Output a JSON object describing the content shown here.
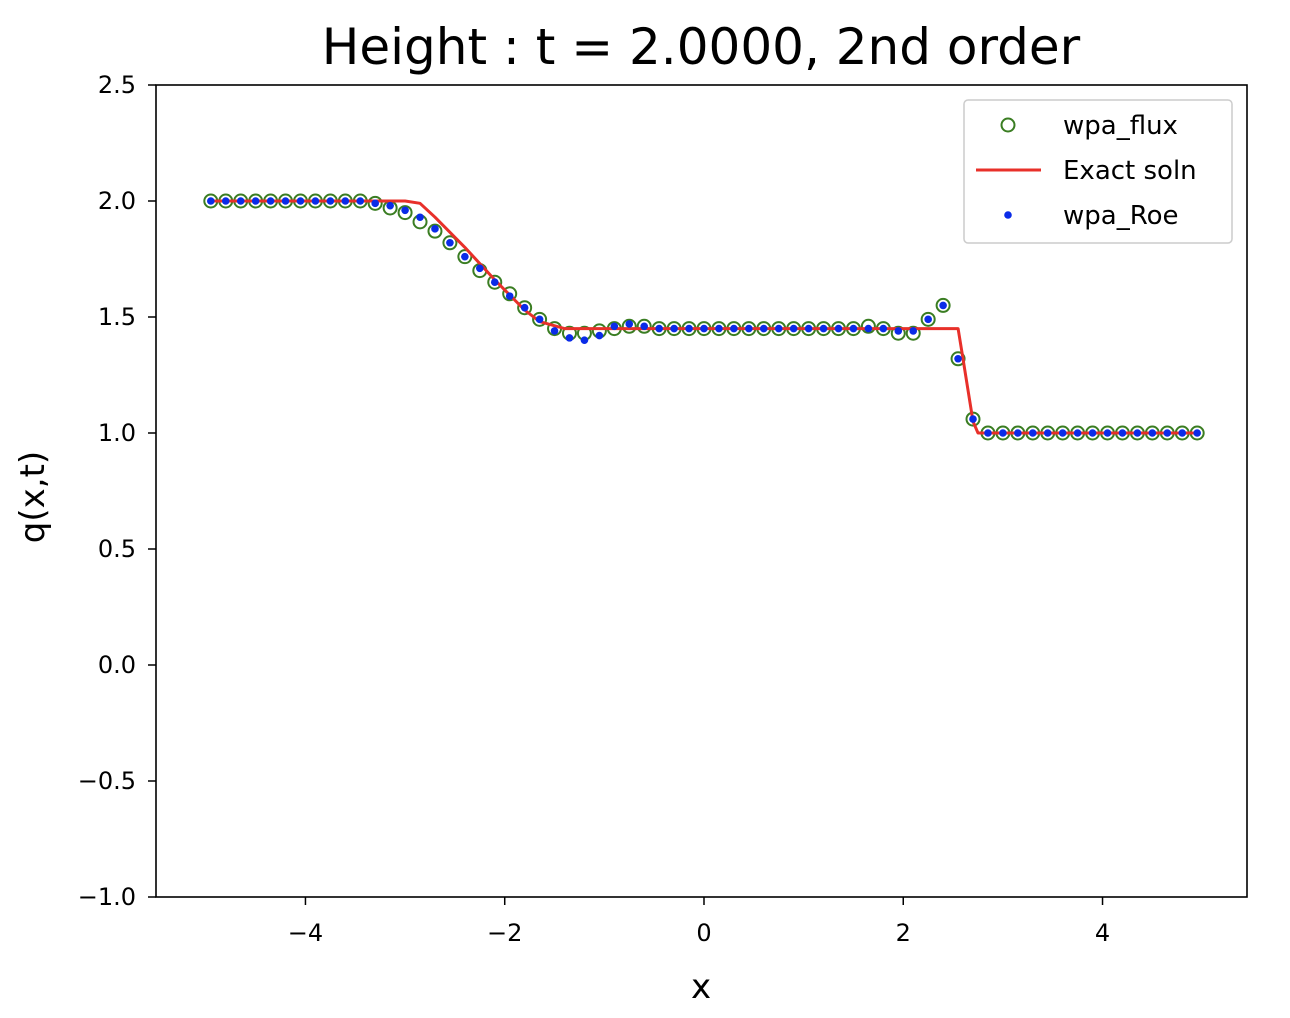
{
  "chart_data": {
    "type": "scatter",
    "title": "Height : t = 2.0000, 2nd order",
    "xlabel": "x",
    "ylabel": "q(x,t)",
    "xlim": [
      -5.5,
      5.45
    ],
    "ylim": [
      -1.0,
      2.5
    ],
    "xticks": [
      -4,
      -2,
      0,
      2,
      4
    ],
    "xtick_labels": [
      "−4",
      "−2",
      "0",
      "2",
      "4"
    ],
    "yticks": [
      -1.0,
      -0.5,
      0.0,
      0.5,
      1.0,
      1.5,
      2.0,
      2.5
    ],
    "ytick_labels": [
      "−1.0",
      "−0.5",
      "0.0",
      "0.5",
      "1.0",
      "1.5",
      "2.0",
      "2.5"
    ],
    "grid": false,
    "legend_position": "top-right",
    "series": [
      {
        "name": "wpa_flux",
        "marker": "open-circle",
        "color": "#3a7d22",
        "x": [
          -4.95,
          -4.8,
          -4.65,
          -4.5,
          -4.35,
          -4.2,
          -4.05,
          -3.9,
          -3.75,
          -3.6,
          -3.45,
          -3.3,
          -3.15,
          -3.0,
          -2.85,
          -2.7,
          -2.55,
          -2.4,
          -2.25,
          -2.1,
          -1.95,
          -1.8,
          -1.65,
          -1.5,
          -1.35,
          -1.2,
          -1.05,
          -0.9,
          -0.75,
          -0.6,
          -0.45,
          -0.3,
          -0.15,
          0.0,
          0.15,
          0.3,
          0.45,
          0.6,
          0.75,
          0.9,
          1.05,
          1.2,
          1.35,
          1.5,
          1.65,
          1.8,
          1.95,
          2.1,
          2.25,
          2.4,
          2.55,
          2.7,
          2.85,
          3.0,
          3.15,
          3.3,
          3.45,
          3.6,
          3.75,
          3.9,
          4.05,
          4.2,
          4.35,
          4.5,
          4.65,
          4.8,
          4.95
        ],
        "y": [
          2.0,
          2.0,
          2.0,
          2.0,
          2.0,
          2.0,
          2.0,
          2.0,
          2.0,
          2.0,
          2.0,
          1.99,
          1.97,
          1.95,
          1.91,
          1.87,
          1.82,
          1.76,
          1.7,
          1.65,
          1.6,
          1.54,
          1.49,
          1.45,
          1.43,
          1.43,
          1.44,
          1.45,
          1.46,
          1.46,
          1.45,
          1.45,
          1.45,
          1.45,
          1.45,
          1.45,
          1.45,
          1.45,
          1.45,
          1.45,
          1.45,
          1.45,
          1.45,
          1.45,
          1.46,
          1.45,
          1.43,
          1.43,
          1.49,
          1.55,
          1.32,
          1.06,
          1.0,
          1.0,
          1.0,
          1.0,
          1.0,
          1.0,
          1.0,
          1.0,
          1.0,
          1.0,
          1.0,
          1.0,
          1.0,
          1.0,
          1.0
        ]
      },
      {
        "name": "Exact soln",
        "marker": "line",
        "color": "#e8302a",
        "x": [
          -4.95,
          -3.0,
          -2.85,
          -2.7,
          -2.4,
          -2.1,
          -1.8,
          -1.65,
          -1.4,
          -0.9,
          2.55,
          2.6,
          2.7,
          2.75,
          4.95
        ],
        "y": [
          2.0,
          2.0,
          1.99,
          1.93,
          1.8,
          1.66,
          1.53,
          1.48,
          1.45,
          1.45,
          1.45,
          1.32,
          1.05,
          1.0,
          1.0
        ]
      },
      {
        "name": "wpa_Roe",
        "marker": "dot",
        "color": "#0a2be8",
        "x": [
          -4.95,
          -4.8,
          -4.65,
          -4.5,
          -4.35,
          -4.2,
          -4.05,
          -3.9,
          -3.75,
          -3.6,
          -3.45,
          -3.3,
          -3.15,
          -3.0,
          -2.85,
          -2.7,
          -2.55,
          -2.4,
          -2.25,
          -2.1,
          -1.95,
          -1.8,
          -1.65,
          -1.5,
          -1.35,
          -1.2,
          -1.05,
          -0.9,
          -0.75,
          -0.6,
          -0.45,
          -0.3,
          -0.15,
          0.0,
          0.15,
          0.3,
          0.45,
          0.6,
          0.75,
          0.9,
          1.05,
          1.2,
          1.35,
          1.5,
          1.65,
          1.8,
          1.95,
          2.1,
          2.25,
          2.4,
          2.55,
          2.7,
          2.85,
          3.0,
          3.15,
          3.3,
          3.45,
          3.6,
          3.75,
          3.9,
          4.05,
          4.2,
          4.35,
          4.5,
          4.65,
          4.8,
          4.95
        ],
        "y": [
          2.0,
          2.0,
          2.0,
          2.0,
          2.0,
          2.0,
          2.0,
          2.0,
          2.0,
          2.0,
          2.0,
          1.99,
          1.98,
          1.96,
          1.93,
          1.88,
          1.82,
          1.76,
          1.71,
          1.65,
          1.59,
          1.54,
          1.49,
          1.44,
          1.41,
          1.4,
          1.42,
          1.46,
          1.47,
          1.46,
          1.45,
          1.45,
          1.45,
          1.45,
          1.45,
          1.45,
          1.45,
          1.45,
          1.45,
          1.45,
          1.45,
          1.45,
          1.45,
          1.45,
          1.45,
          1.45,
          1.44,
          1.44,
          1.49,
          1.55,
          1.32,
          1.06,
          1.0,
          1.0,
          1.0,
          1.0,
          1.0,
          1.0,
          1.0,
          1.0,
          1.0,
          1.0,
          1.0,
          1.0,
          1.0,
          1.0,
          1.0
        ]
      }
    ]
  }
}
